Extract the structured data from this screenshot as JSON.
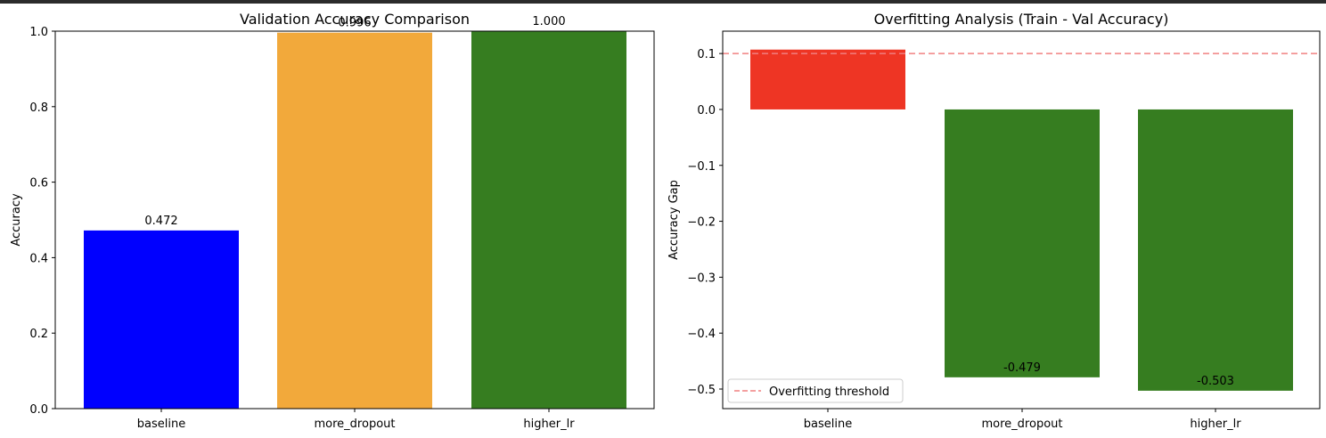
{
  "chart_data": [
    {
      "type": "bar",
      "title": "Validation Accuracy Comparison",
      "xlabel": "",
      "ylabel": "Accuracy",
      "categories": [
        "baseline",
        "more_dropout",
        "higher_lr"
      ],
      "values": [
        0.472,
        0.996,
        1.0
      ],
      "value_labels": [
        "0.472",
        "0.996",
        "1.000"
      ],
      "colors": [
        "#0000ff",
        "#f2a93b",
        "#367d20"
      ],
      "ylim": [
        0,
        1.0
      ],
      "yticks": [
        0.0,
        0.2,
        0.4,
        0.6,
        0.8,
        1.0
      ],
      "ytick_labels": [
        "0.0",
        "0.2",
        "0.4",
        "0.6",
        "0.8",
        "1.0"
      ],
      "grid": false
    },
    {
      "type": "bar",
      "title": "Overfitting Analysis (Train - Val Accuracy)",
      "xlabel": "",
      "ylabel": "Accuracy Gap",
      "categories": [
        "baseline",
        "more_dropout",
        "higher_lr"
      ],
      "values": [
        0.107,
        -0.479,
        -0.503
      ],
      "value_labels": [
        "",
        "-0.479",
        "-0.503"
      ],
      "colors": [
        "#ee3524",
        "#367d20",
        "#367d20"
      ],
      "ylim": [
        -0.535,
        0.14
      ],
      "yticks": [
        0.1,
        0.0,
        -0.1,
        -0.2,
        -0.3,
        -0.4,
        -0.5
      ],
      "ytick_labels": [
        "0.1",
        "0.0",
        "−0.1",
        "−0.2",
        "−0.3",
        "−0.4",
        "−0.5"
      ],
      "threshold": {
        "value": 0.1,
        "label": "Overfitting threshold",
        "color": "#f08080",
        "style": "dashed"
      },
      "legend": {
        "placement": "lower-left",
        "entries": [
          "Overfitting threshold"
        ]
      },
      "grid": false
    }
  ]
}
